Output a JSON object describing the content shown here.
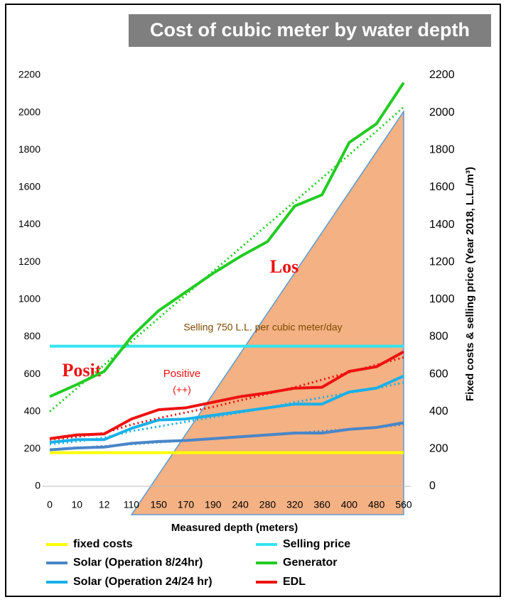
{
  "chart_data": {
    "type": "line",
    "title": "Cost of cubic meter by water depth",
    "x_label": "Measured depth (meters)",
    "y2_label": "Fixed costs & selling price (Year 2018, L.L./m³)",
    "categories": [
      "0",
      "10",
      "12",
      "110",
      "150",
      "170",
      "190",
      "240",
      "280",
      "320",
      "360",
      "400",
      "480",
      "560"
    ],
    "ylim": [
      0,
      2200
    ],
    "yticks": [
      0,
      200,
      400,
      600,
      800,
      1000,
      1200,
      1400,
      1600,
      1800,
      2000,
      2200
    ],
    "y2lim": [
      0,
      2200
    ],
    "y2ticks": [
      0,
      200,
      400,
      600,
      800,
      1000,
      1200,
      1400,
      1600,
      1800,
      2000,
      2200
    ],
    "series": [
      {
        "name": "fixed costs",
        "color": "#ffff00",
        "values": [
          180,
          180,
          180,
          180,
          180,
          180,
          180,
          180,
          180,
          180,
          180,
          180,
          180,
          180
        ]
      },
      {
        "name": "Selling price",
        "color": "#33e5f0",
        "values": [
          750,
          750,
          750,
          750,
          750,
          750,
          750,
          750,
          750,
          750,
          750,
          750,
          750,
          750
        ]
      },
      {
        "name": "Solar (Operation 8/24hr)",
        "color": "#4a86c8",
        "values": [
          195,
          205,
          210,
          230,
          240,
          245,
          255,
          265,
          275,
          285,
          285,
          305,
          315,
          340
        ]
      },
      {
        "name": "Generator",
        "color": "#22cc22",
        "values": [
          480,
          545,
          615,
          800,
          940,
          1040,
          1140,
          1230,
          1310,
          1500,
          1560,
          1840,
          1940,
          2160
        ]
      },
      {
        "name": "Solar (Operation 24/24 hr)",
        "color": "#1ab0e8",
        "values": [
          235,
          250,
          250,
          310,
          355,
          360,
          380,
          400,
          420,
          440,
          440,
          505,
          525,
          590
        ]
      },
      {
        "name": "EDL",
        "color": "#ee1111",
        "values": [
          255,
          275,
          280,
          360,
          410,
          420,
          450,
          480,
          500,
          525,
          530,
          615,
          640,
          720
        ]
      }
    ],
    "trendlines": [
      {
        "color": "#22cc22",
        "values": [
          400,
          525,
          650,
          775,
          900,
          1025,
          1150,
          1275,
          1400,
          1525,
          1650,
          1775,
          1900,
          2030
        ]
      },
      {
        "color": "#ee1111",
        "values": [
          250,
          265,
          285,
          330,
          365,
          395,
          425,
          460,
          495,
          530,
          570,
          610,
          650,
          690
        ]
      },
      {
        "color": "#1ab0e8",
        "values": [
          225,
          240,
          260,
          295,
          320,
          345,
          370,
          395,
          420,
          450,
          475,
          500,
          525,
          555
        ]
      },
      {
        "color": "#4a86c8",
        "values": [
          195,
          205,
          215,
          225,
          235,
          245,
          255,
          265,
          275,
          285,
          295,
          305,
          315,
          330
        ]
      }
    ],
    "annotations": [
      "Selling 750 L.L.  per cubic meter/day",
      "Los",
      "Posit",
      "Positive",
      "(++)"
    ]
  }
}
